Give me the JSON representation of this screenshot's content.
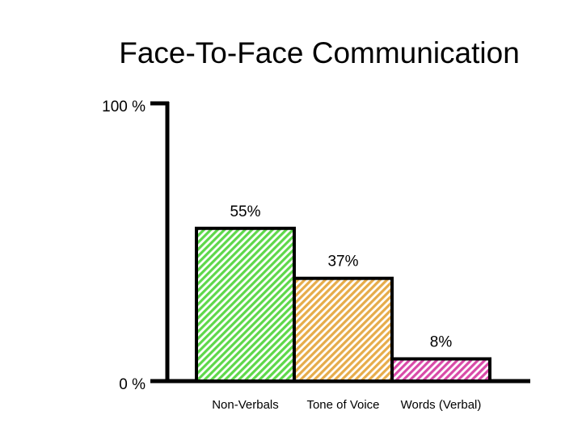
{
  "chart_data": {
    "type": "bar",
    "title": "Face-To-Face Communication",
    "categories": [
      "Non-Verbals",
      "Tone of Voice",
      "Words (Verbal)"
    ],
    "values": [
      55,
      37,
      8
    ],
    "value_labels": [
      "55%",
      "37%",
      "8%"
    ],
    "colors": [
      "#5ed84a",
      "#e6ac4a",
      "#d84aa8"
    ],
    "ylim": [
      0,
      100
    ],
    "yticks": [
      {
        "value": 0,
        "label": "0 %"
      },
      {
        "value": 100,
        "label": "100 %"
      }
    ],
    "grid": false
  }
}
